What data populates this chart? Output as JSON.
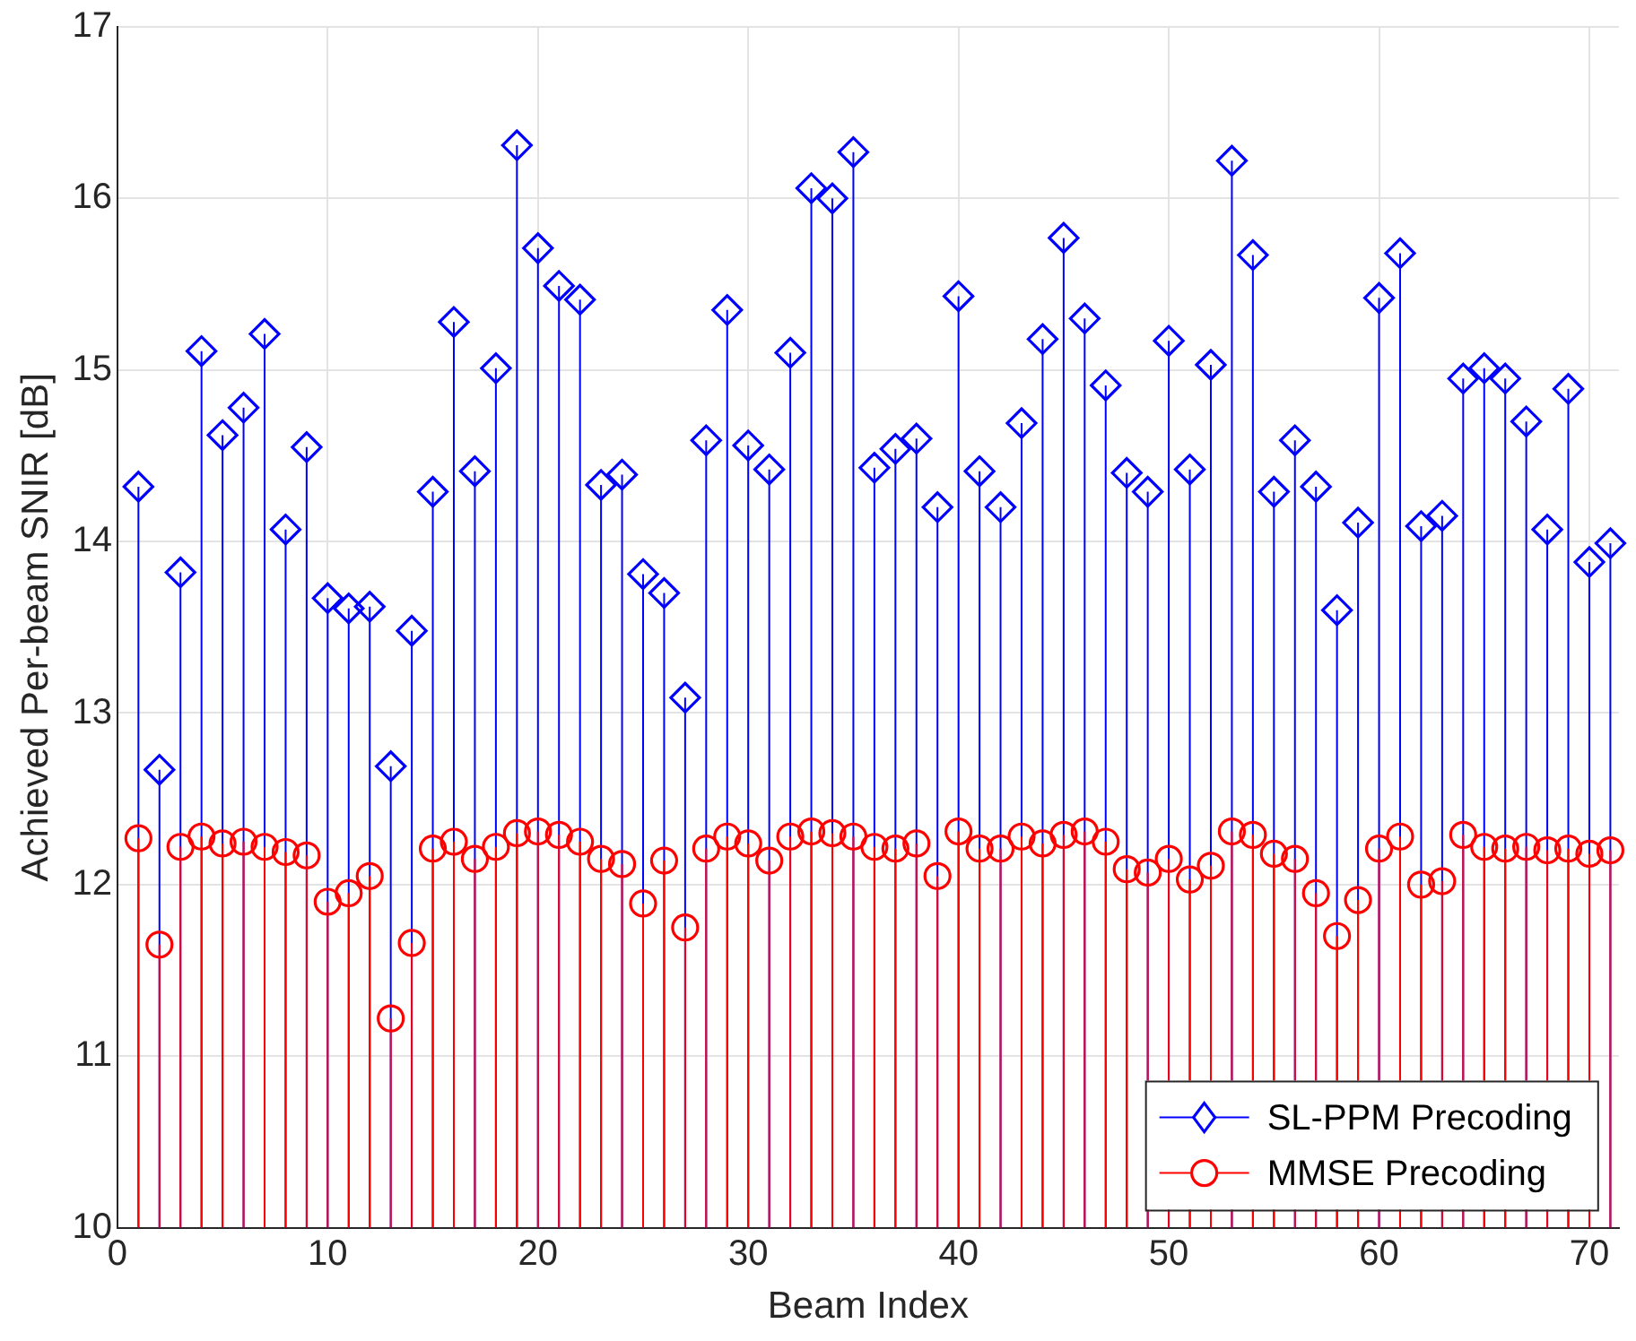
{
  "chart_data": {
    "type": "lollipop",
    "xlabel": "Beam Index",
    "ylabel": "Achieved Per-beam SNIR [dB]",
    "x": [
      1,
      2,
      3,
      4,
      5,
      6,
      7,
      8,
      9,
      10,
      11,
      12,
      13,
      14,
      15,
      16,
      17,
      18,
      19,
      20,
      21,
      22,
      23,
      24,
      25,
      26,
      27,
      28,
      29,
      30,
      31,
      32,
      33,
      34,
      35,
      36,
      37,
      38,
      39,
      40,
      41,
      42,
      43,
      44,
      45,
      46,
      47,
      48,
      49,
      50,
      51,
      52,
      53,
      54,
      55,
      56,
      57,
      58,
      59,
      60,
      61,
      62,
      63,
      64,
      65,
      66,
      67,
      68,
      69,
      70,
      71
    ],
    "series": [
      {
        "name": "SL-PPM Precoding",
        "color": "#0000ff",
        "marker": "diamond",
        "values": [
          14.32,
          12.67,
          13.82,
          15.11,
          14.62,
          14.78,
          15.21,
          14.07,
          14.55,
          13.67,
          13.61,
          13.62,
          12.69,
          13.48,
          14.29,
          15.28,
          14.41,
          15.01,
          16.31,
          15.71,
          15.49,
          15.41,
          14.33,
          14.39,
          13.81,
          13.7,
          13.09,
          14.59,
          15.35,
          14.56,
          14.42,
          15.1,
          16.06,
          16.0,
          16.27,
          14.43,
          14.54,
          14.6,
          14.2,
          15.43,
          14.41,
          14.2,
          14.69,
          15.18,
          15.77,
          15.3,
          14.91,
          14.4,
          14.29,
          15.17,
          14.42,
          15.03,
          16.22,
          15.67,
          14.29,
          14.59,
          14.32,
          13.6,
          14.11,
          15.42,
          15.68,
          14.09,
          14.15,
          14.95,
          15.01,
          14.95,
          14.7,
          14.07,
          14.89,
          13.88,
          13.99
        ]
      },
      {
        "name": "MMSE Precoding",
        "color": "#ff0000",
        "marker": "circle",
        "values": [
          12.27,
          11.65,
          12.22,
          12.28,
          12.24,
          12.25,
          12.22,
          12.19,
          12.17,
          11.9,
          11.95,
          12.05,
          11.22,
          11.66,
          12.21,
          12.25,
          12.15,
          12.22,
          12.3,
          12.31,
          12.29,
          12.25,
          12.15,
          12.12,
          11.89,
          12.14,
          11.75,
          12.21,
          12.28,
          12.24,
          12.14,
          12.28,
          12.31,
          12.3,
          12.28,
          12.22,
          12.21,
          12.24,
          12.05,
          12.31,
          12.21,
          12.21,
          12.28,
          12.24,
          12.29,
          12.31,
          12.25,
          12.09,
          12.07,
          12.15,
          12.03,
          12.11,
          12.31,
          12.29,
          12.18,
          12.15,
          11.95,
          11.7,
          11.91,
          12.21,
          12.28,
          12.0,
          12.02,
          12.29,
          12.22,
          12.21,
          12.22,
          12.2,
          12.21,
          12.18,
          12.2
        ]
      }
    ],
    "xlim": [
      0,
      71.4
    ],
    "xticks": [
      0,
      10,
      20,
      30,
      40,
      50,
      60,
      70
    ],
    "ylim": [
      10,
      17
    ],
    "yticks": [
      10,
      11,
      12,
      13,
      14,
      15,
      16,
      17
    ],
    "grid": true,
    "legend": "bottom right"
  }
}
